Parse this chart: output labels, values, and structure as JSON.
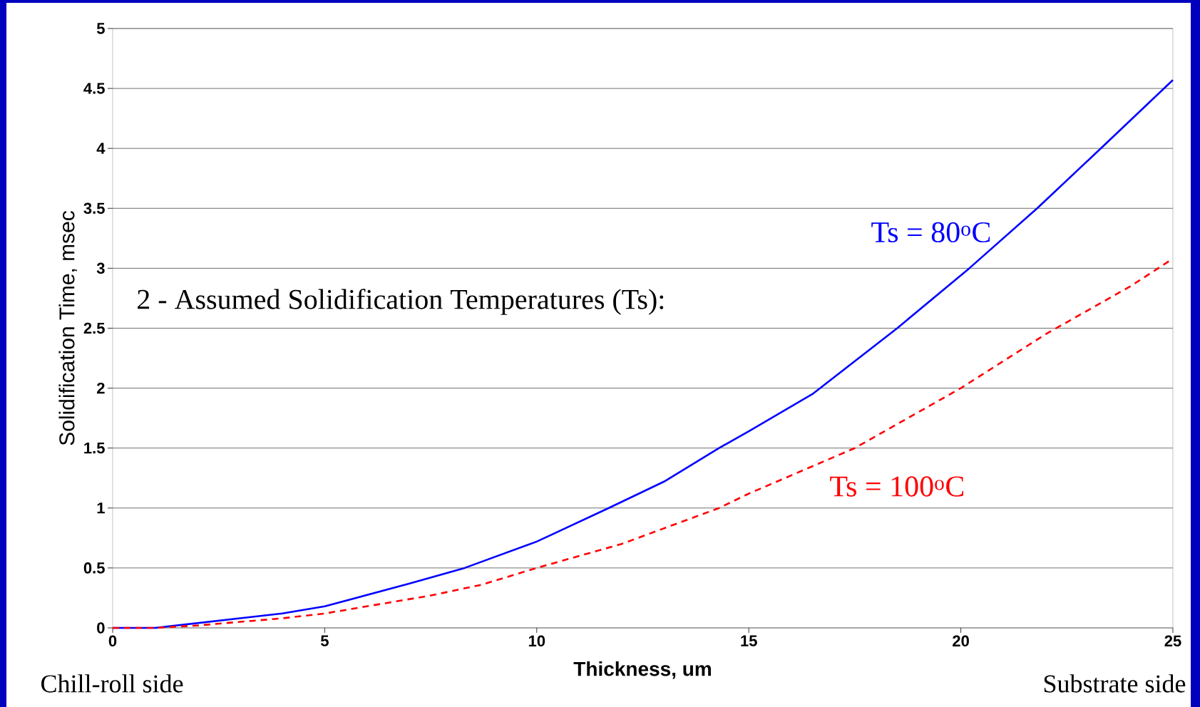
{
  "chart_data": {
    "type": "line",
    "xlabel": "Thickness, um",
    "ylabel": "Solidification Time, msec",
    "xlim": [
      0,
      25
    ],
    "ylim": [
      0,
      5
    ],
    "xticks": [
      0,
      5,
      10,
      15,
      20,
      25
    ],
    "yticks": [
      0,
      0.5,
      1,
      1.5,
      2,
      2.5,
      3,
      3.5,
      4,
      4.5,
      5
    ],
    "grid": "y",
    "annotations": [
      "2 - Assumed Solidification Temperatures (Ts):",
      "Chill-roll side",
      "Substrate side"
    ],
    "series": [
      {
        "name": "Ts = 80$^{o}$C",
        "color": "#0000ff",
        "line_style": "solid",
        "x": [
          0,
          1,
          2,
          3,
          4,
          5,
          7,
          8.3,
          10,
          11.7,
          13,
          14.3,
          15,
          16.5,
          18.5,
          20.2,
          21.8,
          23.3,
          25
        ],
        "values": [
          0,
          0,
          0.04,
          0.08,
          0.12,
          0.18,
          0.37,
          0.5,
          0.72,
          1.0,
          1.22,
          1.5,
          1.64,
          1.95,
          2.5,
          3.0,
          3.5,
          4.0,
          4.57
        ]
      },
      {
        "name": "Ts = 100$^{o}$C",
        "color": "#ff0000",
        "line_style": "dashed",
        "x": [
          0,
          1,
          2,
          4,
          5,
          7.5,
          8.7,
          10,
          12,
          14.3,
          15,
          17.5,
          20,
          22,
          24,
          25
        ],
        "values": [
          0,
          0,
          0.02,
          0.08,
          0.12,
          0.27,
          0.36,
          0.5,
          0.7,
          1.0,
          1.12,
          1.5,
          2.0,
          2.45,
          2.85,
          3.08
        ]
      }
    ]
  }
}
